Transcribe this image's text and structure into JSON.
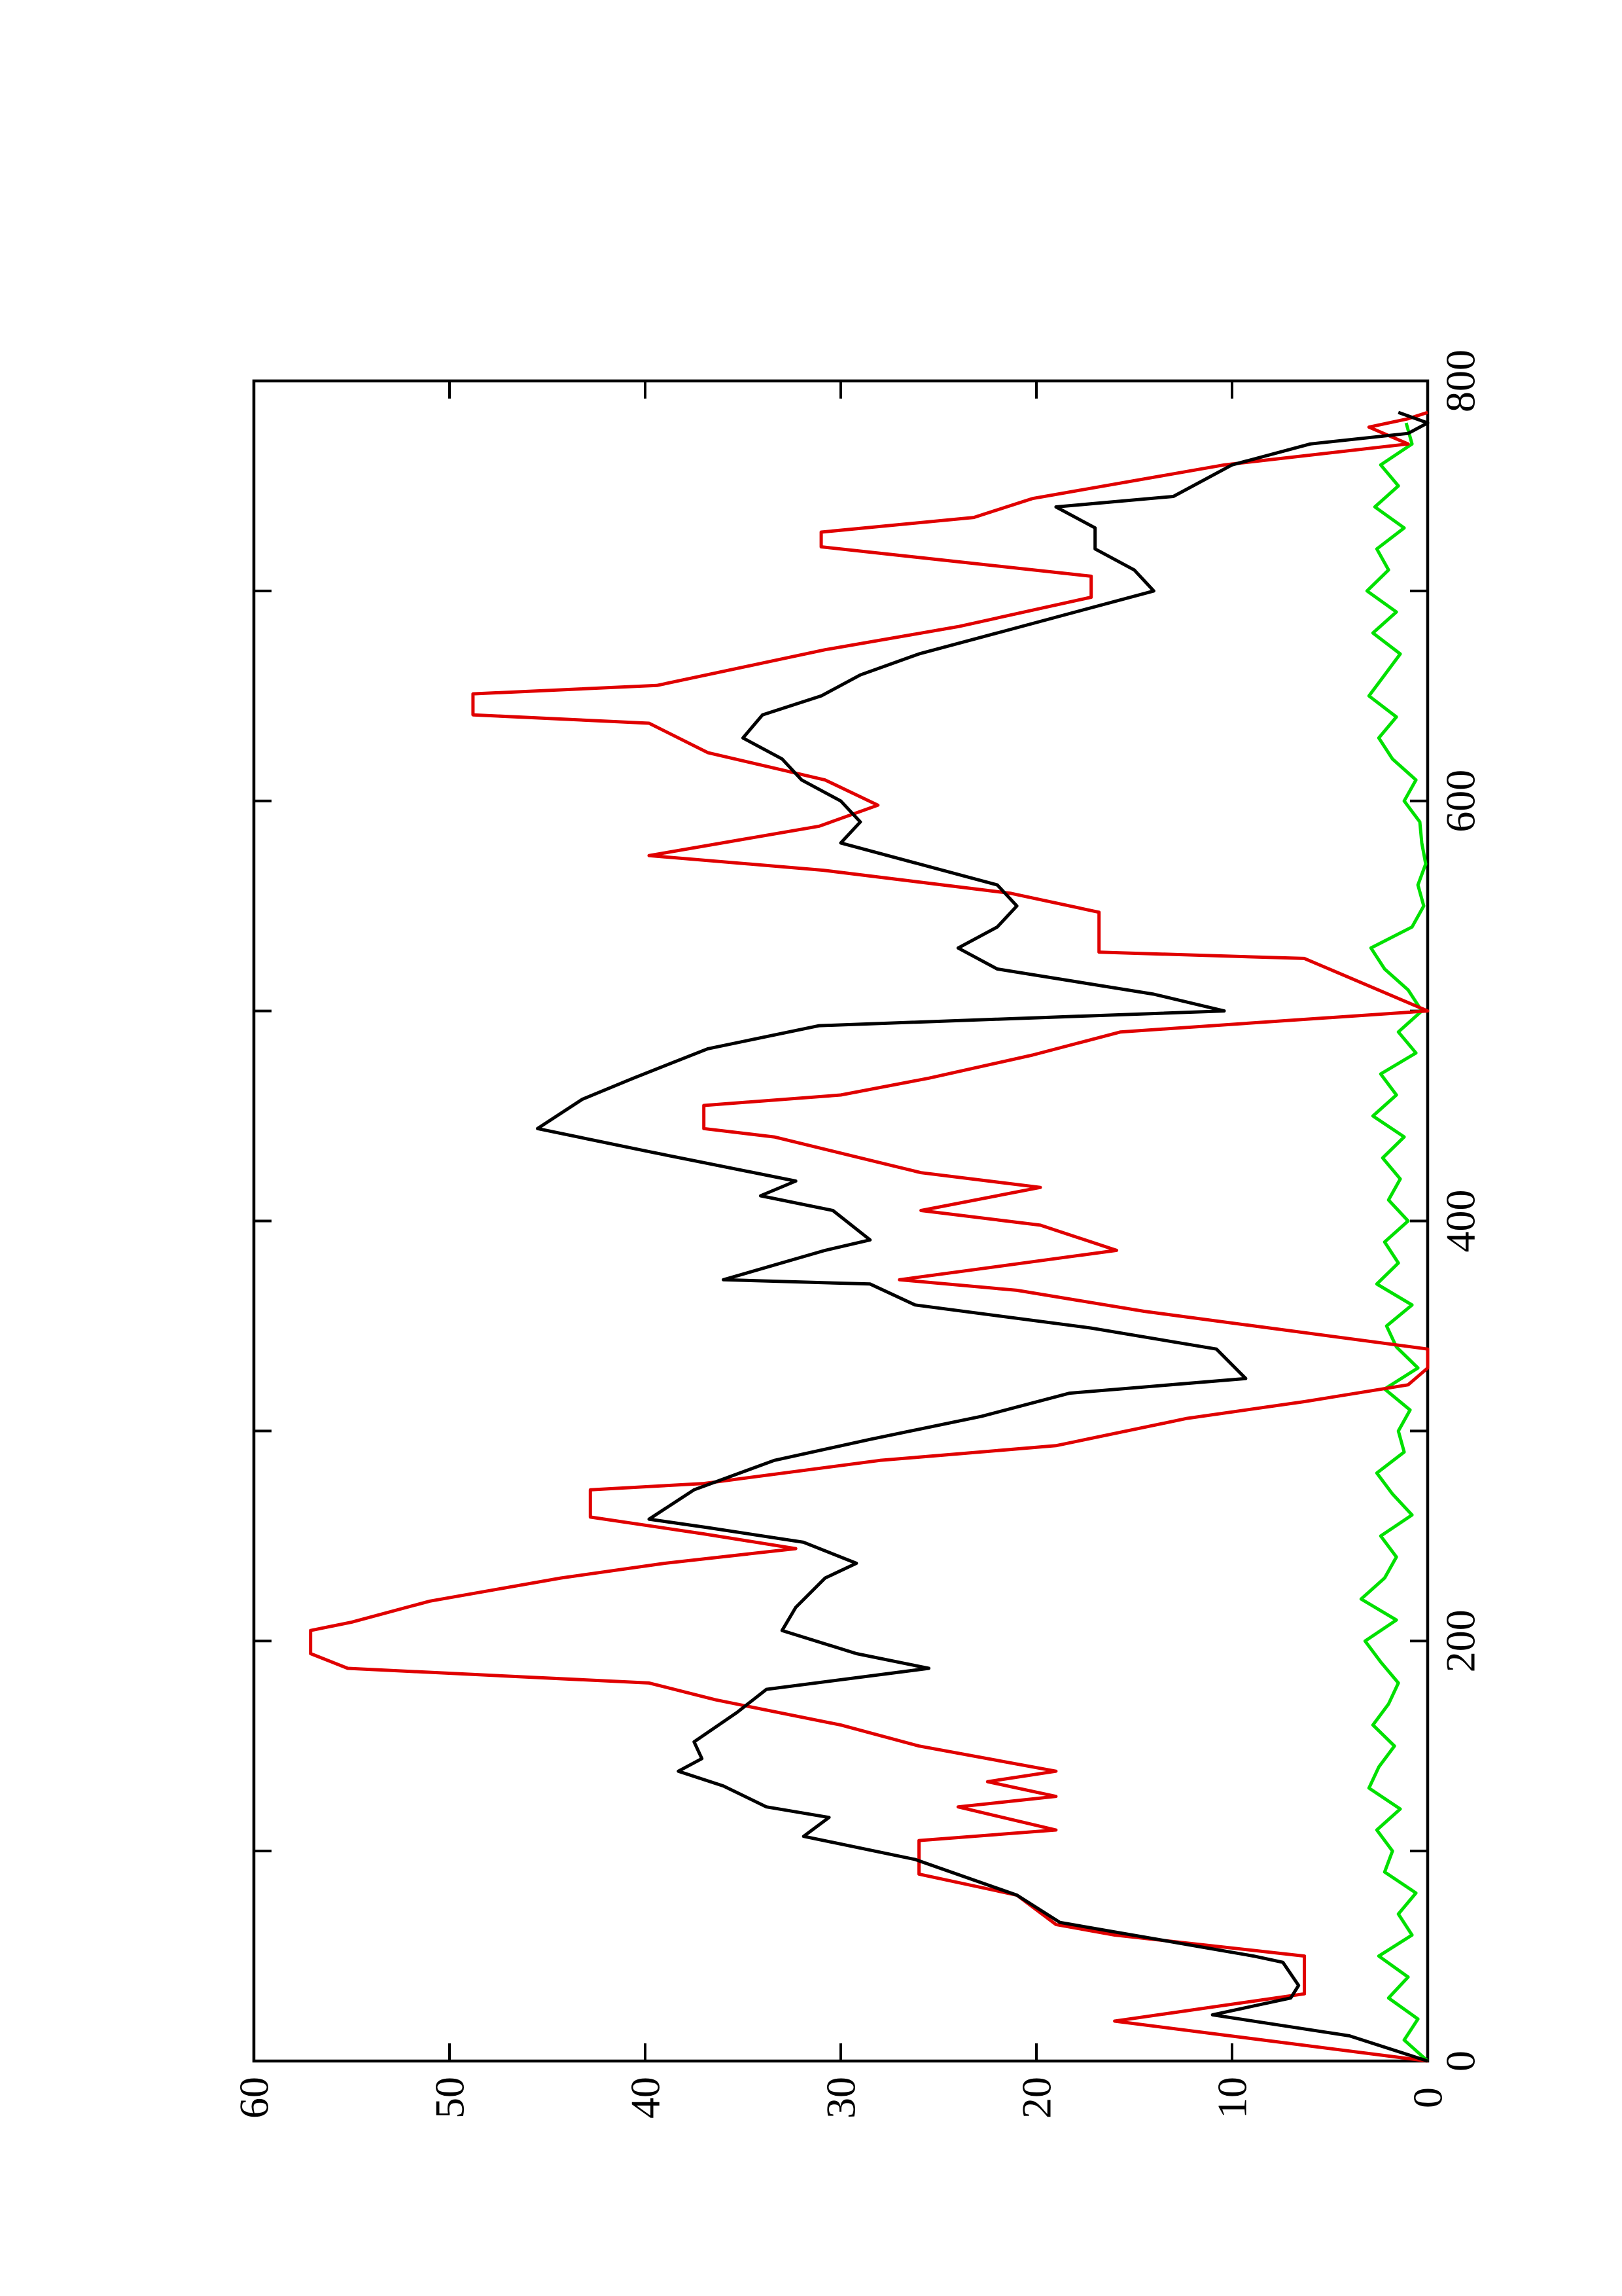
{
  "chart_data": {
    "type": "line",
    "rotated": true,
    "xlim": [
      0,
      800
    ],
    "xticks": [
      0,
      200,
      400,
      600,
      800
    ],
    "xminorticks": [
      100,
      300,
      500,
      700
    ],
    "ylim": [
      0,
      60
    ],
    "yticks": [
      0,
      10,
      20,
      30,
      40,
      50,
      60
    ],
    "series": [
      {
        "color": "#000000",
        "x": [
          0,
          12,
          22,
          30,
          36,
          47,
          50,
          61,
          66,
          79,
          96,
          107,
          116,
          121,
          131,
          138,
          144,
          152,
          166,
          177,
          187,
          194,
          205,
          216,
          230,
          237,
          247,
          254,
          258,
          272,
          286,
          296,
          307,
          318,
          325,
          339,
          349,
          360,
          370,
          372,
          386,
          391,
          405,
          412,
          419,
          433,
          444,
          458,
          468,
          482,
          493,
          500,
          508,
          520,
          530,
          540,
          550,
          560,
          580,
          590,
          600,
          610,
          620,
          630,
          641,
          650,
          660,
          670,
          680,
          690,
          700,
          710,
          720,
          730,
          740,
          745,
          760,
          770,
          775,
          780,
          785
        ],
        "values": [
          0,
          4,
          11,
          7,
          6.6,
          7.4,
          8.9,
          15.7,
          18.8,
          21,
          26.2,
          31.9,
          30.6,
          33.8,
          36,
          38.3,
          37.1,
          37.5,
          35.3,
          33.8,
          25.5,
          29.2,
          33,
          32.3,
          30.8,
          29.2,
          31.9,
          36.8,
          39.8,
          37.5,
          33.4,
          28.5,
          22.8,
          18.3,
          9.3,
          10.8,
          17.2,
          26.2,
          28.5,
          36,
          30.8,
          28.5,
          30.4,
          34.1,
          32.3,
          39.8,
          45.5,
          43.2,
          40.6,
          36.8,
          31.1,
          10.4,
          14,
          22,
          24,
          22,
          21,
          22,
          30,
          29,
          30,
          32,
          33,
          35,
          34,
          31,
          29,
          26,
          22,
          18,
          14,
          15,
          17,
          17,
          19,
          13,
          10,
          6,
          1,
          0,
          1.5
        ]
      },
      {
        "color": "#e00000",
        "x": [
          0,
          19,
          32,
          50,
          60,
          65,
          79,
          89,
          105,
          110,
          121,
          126,
          133,
          138,
          150,
          160,
          172,
          180,
          187,
          194,
          205,
          209,
          219,
          230,
          237,
          244,
          251,
          259,
          272,
          275,
          286,
          293,
          306,
          314,
          322,
          330,
          339,
          357,
          367,
          372,
          386,
          398,
          405,
          416,
          423,
          440,
          444,
          455,
          460,
          468,
          479,
          490,
          500,
          525,
          528,
          547,
          556,
          567,
          574,
          588,
          598,
          610,
          623,
          637,
          641,
          651,
          655,
          672,
          683,
          697,
          707,
          721,
          728,
          735,
          744,
          760,
          770,
          778,
          782,
          785
        ],
        "values": [
          0,
          16,
          6.3,
          6.3,
          16,
          19,
          21,
          26,
          26,
          19,
          24,
          19,
          22.5,
          19,
          26,
          30,
          36.4,
          39.8,
          55.2,
          57.1,
          57.1,
          55,
          51,
          44.3,
          39,
          32.3,
          37,
          42.8,
          42.8,
          37,
          28,
          19,
          12.3,
          6.3,
          1,
          0,
          0,
          14.5,
          21,
          27,
          15.9,
          19.8,
          25.9,
          19.8,
          25.9,
          33.4,
          37,
          37,
          30,
          25.5,
          20.2,
          15.7,
          0,
          6.3,
          16.8,
          16.8,
          21.3,
          30.9,
          39.8,
          31.1,
          28.1,
          30.8,
          36.8,
          39.8,
          48.8,
          48.8,
          39.4,
          30.8,
          24,
          17.2,
          17.2,
          31,
          31,
          23.2,
          20.2,
          10.4,
          1,
          3,
          1,
          0
        ]
      },
      {
        "color": "#00e000",
        "x": [
          0,
          10,
          20,
          30,
          40,
          50,
          60,
          70,
          80,
          90,
          100,
          110,
          120,
          130,
          140,
          150,
          160,
          170,
          180,
          190,
          200,
          210,
          220,
          230,
          240,
          250,
          260,
          270,
          280,
          290,
          300,
          310,
          320,
          330,
          340,
          350,
          360,
          370,
          380,
          390,
          400,
          410,
          420,
          430,
          440,
          450,
          460,
          470,
          480,
          490,
          500,
          510,
          520,
          530,
          540,
          550,
          560,
          570,
          580,
          590,
          600,
          610,
          620,
          630,
          640,
          650,
          660,
          670,
          680,
          690,
          700,
          710,
          720,
          730,
          740,
          750,
          760,
          770,
          780
        ],
        "values": [
          0,
          1.2,
          0.5,
          2,
          1,
          2.5,
          0.8,
          1.5,
          0.6,
          2.2,
          1.8,
          2.6,
          1.4,
          3,
          2.5,
          1.7,
          2.8,
          2,
          1.5,
          2.4,
          3.2,
          1.6,
          3.4,
          2.2,
          1.6,
          2.4,
          0.8,
          1.8,
          2.6,
          1.2,
          1.5,
          0.9,
          2.2,
          0.5,
          1.6,
          2.1,
          0.8,
          2.6,
          1.5,
          2.2,
          1,
          2,
          1.4,
          2.3,
          1.2,
          2.8,
          1.6,
          2.4,
          0.6,
          1.5,
          0.3,
          1,
          2.2,
          2.9,
          0.8,
          0.2,
          0.5,
          0.1,
          0.3,
          0.4,
          1.2,
          0.6,
          1.8,
          2.5,
          1.6,
          3,
          2.2,
          1.4,
          2.8,
          1.6,
          3.1,
          2,
          2.6,
          1.2,
          2.7,
          1.5,
          2.4,
          0.8,
          1.1
        ]
      }
    ]
  }
}
